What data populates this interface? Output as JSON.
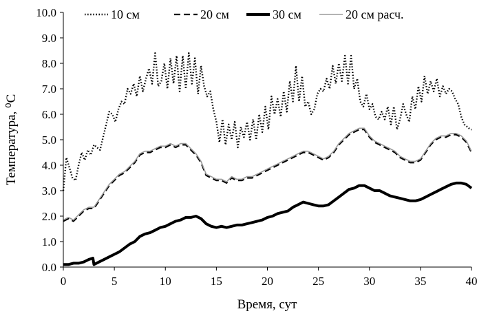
{
  "chart_data": {
    "type": "line",
    "title": "",
    "xlabel": "Время, сут",
    "ylabel": "Температура, ⁰С",
    "xlim": [
      0,
      40
    ],
    "ylim": [
      0,
      10
    ],
    "x_ticks": [
      "0",
      "5",
      "10",
      "15",
      "20",
      "25",
      "30",
      "35",
      "40"
    ],
    "y_ticks": [
      "0.0",
      "1.0",
      "2.0",
      "3.0",
      "4.0",
      "5.0",
      "6.0",
      "7.0",
      "8.0",
      "9.0",
      "10.0"
    ],
    "grid": false,
    "legend_position": "top",
    "series": [
      {
        "name": "10 см",
        "style": "dotted",
        "color": "#000000",
        "x": [
          0,
          0.3,
          0.6,
          0.9,
          1.2,
          1.5,
          1.8,
          2.1,
          2.4,
          2.7,
          3.0,
          3.3,
          3.6,
          3.9,
          4.2,
          4.5,
          4.8,
          5.1,
          5.4,
          5.7,
          6.0,
          6.3,
          6.6,
          6.9,
          7.2,
          7.5,
          7.8,
          8.1,
          8.4,
          8.7,
          9.0,
          9.3,
          9.6,
          9.9,
          10.2,
          10.5,
          10.8,
          11.1,
          11.4,
          11.7,
          12.0,
          12.3,
          12.6,
          12.9,
          13.2,
          13.5,
          13.8,
          14.1,
          14.4,
          14.7,
          15.0,
          15.3,
          15.6,
          15.9,
          16.2,
          16.5,
          16.8,
          17.1,
          17.4,
          17.7,
          18.0,
          18.3,
          18.6,
          18.9,
          19.2,
          19.5,
          19.8,
          20.1,
          20.4,
          20.7,
          21.0,
          21.3,
          21.6,
          21.9,
          22.2,
          22.5,
          22.8,
          23.1,
          23.4,
          23.7,
          24.0,
          24.3,
          24.6,
          24.9,
          25.2,
          25.5,
          25.8,
          26.1,
          26.4,
          26.7,
          27.0,
          27.3,
          27.6,
          27.9,
          28.2,
          28.5,
          28.8,
          29.1,
          29.4,
          29.7,
          30.0,
          30.3,
          30.6,
          30.9,
          31.2,
          31.5,
          31.8,
          32.1,
          32.4,
          32.7,
          33.0,
          33.3,
          33.6,
          33.9,
          34.2,
          34.5,
          34.8,
          35.1,
          35.4,
          35.7,
          36.0,
          36.3,
          36.6,
          36.9,
          37.2,
          37.5,
          37.8,
          38.1,
          38.4,
          38.7,
          39.0,
          39.3,
          39.6,
          39.9
        ],
        "values": [
          3.0,
          4.3,
          3.9,
          3.5,
          3.4,
          4.0,
          4.5,
          4.2,
          4.6,
          4.4,
          4.8,
          4.7,
          4.6,
          5.1,
          5.6,
          6.1,
          6.0,
          5.7,
          6.2,
          6.5,
          6.4,
          7.0,
          6.8,
          7.2,
          6.7,
          7.5,
          6.9,
          7.4,
          7.8,
          7.2,
          8.4,
          7.1,
          7.3,
          8.0,
          7.0,
          8.2,
          7.2,
          8.3,
          6.9,
          8.3,
          7.0,
          8.4,
          7.2,
          8.2,
          6.8,
          7.9,
          7.1,
          6.7,
          6.9,
          6.2,
          5.7,
          4.9,
          5.8,
          4.8,
          5.6,
          5.0,
          5.7,
          4.7,
          5.5,
          5.1,
          5.7,
          5.0,
          5.8,
          5.0,
          6.0,
          5.3,
          6.3,
          5.4,
          6.7,
          6.0,
          6.6,
          5.9,
          6.9,
          6.1,
          7.3,
          6.5,
          7.9,
          6.5,
          7.5,
          6.3,
          6.5,
          6.0,
          6.2,
          6.8,
          7.0,
          6.9,
          7.4,
          7.0,
          7.9,
          7.2,
          8.0,
          7.3,
          8.3,
          7.2,
          8.3,
          7.0,
          7.4,
          6.5,
          6.3,
          6.8,
          6.2,
          6.4,
          5.9,
          5.8,
          6.1,
          5.8,
          6.3,
          5.6,
          6.3,
          5.4,
          5.8,
          6.4,
          6.0,
          5.7,
          6.7,
          6.2,
          7.1,
          6.5,
          7.5,
          6.8,
          7.3,
          6.9,
          7.4,
          6.7,
          7.1,
          6.8,
          7.0,
          6.9,
          6.6,
          6.4,
          5.9,
          5.6,
          5.5,
          5.4
        ],
        "x_end": 40,
        "value_end": 5.4
      },
      {
        "name": "20 см",
        "style": "dashed",
        "color": "#000000",
        "x": [
          0,
          0.5,
          1.0,
          1.5,
          2.0,
          2.5,
          3.0,
          3.5,
          4.0,
          4.5,
          5.0,
          5.5,
          6.0,
          6.5,
          7.0,
          7.5,
          8.0,
          8.5,
          9.0,
          9.5,
          10.0,
          10.5,
          11.0,
          11.5,
          12.0,
          12.5,
          13.0,
          13.5,
          14.0,
          14.5,
          15.0,
          15.5,
          16.0,
          16.5,
          17.0,
          17.5,
          18.0,
          18.5,
          19.0,
          19.5,
          20.0,
          20.5,
          21.0,
          21.5,
          22.0,
          22.5,
          23.0,
          23.5,
          24.0,
          24.5,
          25.0,
          25.5,
          26.0,
          26.5,
          27.0,
          27.5,
          28.0,
          28.5,
          29.0,
          29.5,
          30.0,
          30.5,
          31.0,
          31.5,
          32.0,
          32.5,
          33.0,
          33.5,
          34.0,
          34.5,
          35.0,
          35.5,
          36.0,
          36.5,
          37.0,
          37.5,
          38.0,
          38.5,
          39.0,
          39.5,
          40.0
        ],
        "values": [
          1.8,
          1.9,
          1.8,
          2.0,
          2.2,
          2.3,
          2.3,
          2.6,
          2.9,
          3.2,
          3.4,
          3.6,
          3.7,
          3.9,
          4.1,
          4.4,
          4.5,
          4.5,
          4.6,
          4.7,
          4.7,
          4.8,
          4.7,
          4.8,
          4.8,
          4.6,
          4.4,
          4.1,
          3.6,
          3.5,
          3.4,
          3.4,
          3.3,
          3.5,
          3.4,
          3.4,
          3.5,
          3.5,
          3.6,
          3.7,
          3.8,
          3.9,
          4.0,
          4.1,
          4.2,
          4.3,
          4.4,
          4.5,
          4.5,
          4.4,
          4.3,
          4.2,
          4.3,
          4.5,
          4.8,
          5.0,
          5.2,
          5.3,
          5.4,
          5.4,
          5.1,
          4.9,
          4.8,
          4.7,
          4.6,
          4.5,
          4.3,
          4.2,
          4.1,
          4.1,
          4.2,
          4.5,
          4.8,
          5.0,
          5.1,
          5.1,
          5.2,
          5.2,
          5.1,
          4.9,
          4.5
        ]
      },
      {
        "name": "30 см",
        "style": "solid-thick",
        "color": "#000000",
        "x": [
          0,
          0.5,
          1.0,
          1.5,
          2.0,
          2.5,
          2.9,
          3.0,
          3.5,
          4.0,
          4.5,
          5.0,
          5.5,
          6.0,
          6.5,
          7.0,
          7.5,
          8.0,
          8.5,
          9.0,
          9.5,
          10.0,
          10.5,
          11.0,
          11.5,
          12.0,
          12.5,
          13.0,
          13.5,
          14.0,
          14.5,
          15.0,
          15.5,
          16.0,
          16.5,
          17.0,
          17.5,
          18.0,
          18.5,
          19.0,
          19.5,
          20.0,
          20.5,
          21.0,
          21.5,
          22.0,
          22.5,
          23.0,
          23.5,
          24.0,
          24.5,
          25.0,
          25.5,
          26.0,
          26.5,
          27.0,
          27.5,
          28.0,
          28.5,
          29.0,
          29.5,
          30.0,
          30.5,
          31.0,
          31.5,
          32.0,
          32.5,
          33.0,
          33.5,
          34.0,
          34.5,
          35.0,
          35.5,
          36.0,
          36.5,
          37.0,
          37.5,
          38.0,
          38.5,
          39.0,
          39.5,
          40.0
        ],
        "values": [
          0.1,
          0.1,
          0.15,
          0.15,
          0.2,
          0.3,
          0.35,
          0.1,
          0.2,
          0.3,
          0.4,
          0.5,
          0.6,
          0.75,
          0.9,
          1.0,
          1.2,
          1.3,
          1.35,
          1.45,
          1.55,
          1.6,
          1.7,
          1.8,
          1.85,
          1.95,
          1.95,
          2.0,
          1.9,
          1.7,
          1.6,
          1.55,
          1.6,
          1.55,
          1.6,
          1.65,
          1.65,
          1.7,
          1.75,
          1.8,
          1.85,
          1.95,
          2.0,
          2.1,
          2.15,
          2.2,
          2.35,
          2.45,
          2.55,
          2.5,
          2.45,
          2.4,
          2.4,
          2.45,
          2.6,
          2.75,
          2.9,
          3.05,
          3.1,
          3.2,
          3.2,
          3.1,
          3.0,
          3.0,
          2.9,
          2.8,
          2.75,
          2.7,
          2.65,
          2.6,
          2.6,
          2.65,
          2.75,
          2.85,
          2.95,
          3.05,
          3.15,
          3.25,
          3.3,
          3.3,
          3.25,
          3.1
        ]
      },
      {
        "name": "20 см расч.",
        "style": "solid-thin",
        "color": "#9a9a9a",
        "x": [
          0,
          0.5,
          1.0,
          1.5,
          2.0,
          2.5,
          3.0,
          3.5,
          4.0,
          4.5,
          5.0,
          5.5,
          6.0,
          6.5,
          7.0,
          7.5,
          8.0,
          8.5,
          9.0,
          9.5,
          10.0,
          10.5,
          11.0,
          11.5,
          12.0,
          12.5,
          13.0,
          13.5,
          14.0,
          14.5,
          15.0,
          15.5,
          16.0,
          16.5,
          17.0,
          17.5,
          18.0,
          18.5,
          19.0,
          19.5,
          20.0,
          20.5,
          21.0,
          21.5,
          22.0,
          22.5,
          23.0,
          23.5,
          24.0,
          24.5,
          25.0,
          25.5,
          26.0,
          26.5,
          27.0,
          27.5,
          28.0,
          28.5,
          29.0,
          29.5,
          30.0,
          30.5,
          31.0,
          31.5,
          32.0,
          32.5,
          33.0,
          33.5,
          34.0,
          34.5,
          35.0,
          35.5,
          36.0,
          36.5,
          37.0,
          37.5,
          38.0,
          38.5,
          39.0,
          39.5,
          40.0
        ],
        "values": [
          1.85,
          1.95,
          1.85,
          2.05,
          2.25,
          2.35,
          2.35,
          2.65,
          2.95,
          3.25,
          3.45,
          3.65,
          3.75,
          3.95,
          4.15,
          4.45,
          4.55,
          4.55,
          4.65,
          4.75,
          4.75,
          4.85,
          4.75,
          4.85,
          4.85,
          4.65,
          4.45,
          4.15,
          3.65,
          3.55,
          3.45,
          3.45,
          3.35,
          3.55,
          3.45,
          3.45,
          3.55,
          3.55,
          3.65,
          3.75,
          3.85,
          3.95,
          4.05,
          4.15,
          4.25,
          4.35,
          4.45,
          4.55,
          4.55,
          4.45,
          4.35,
          4.25,
          4.35,
          4.55,
          4.85,
          5.05,
          5.25,
          5.35,
          5.45,
          5.45,
          5.15,
          4.95,
          4.85,
          4.75,
          4.65,
          4.55,
          4.35,
          4.25,
          4.15,
          4.15,
          4.25,
          4.55,
          4.85,
          5.05,
          5.15,
          5.15,
          5.25,
          5.25,
          5.15,
          4.95,
          4.55
        ]
      }
    ]
  }
}
